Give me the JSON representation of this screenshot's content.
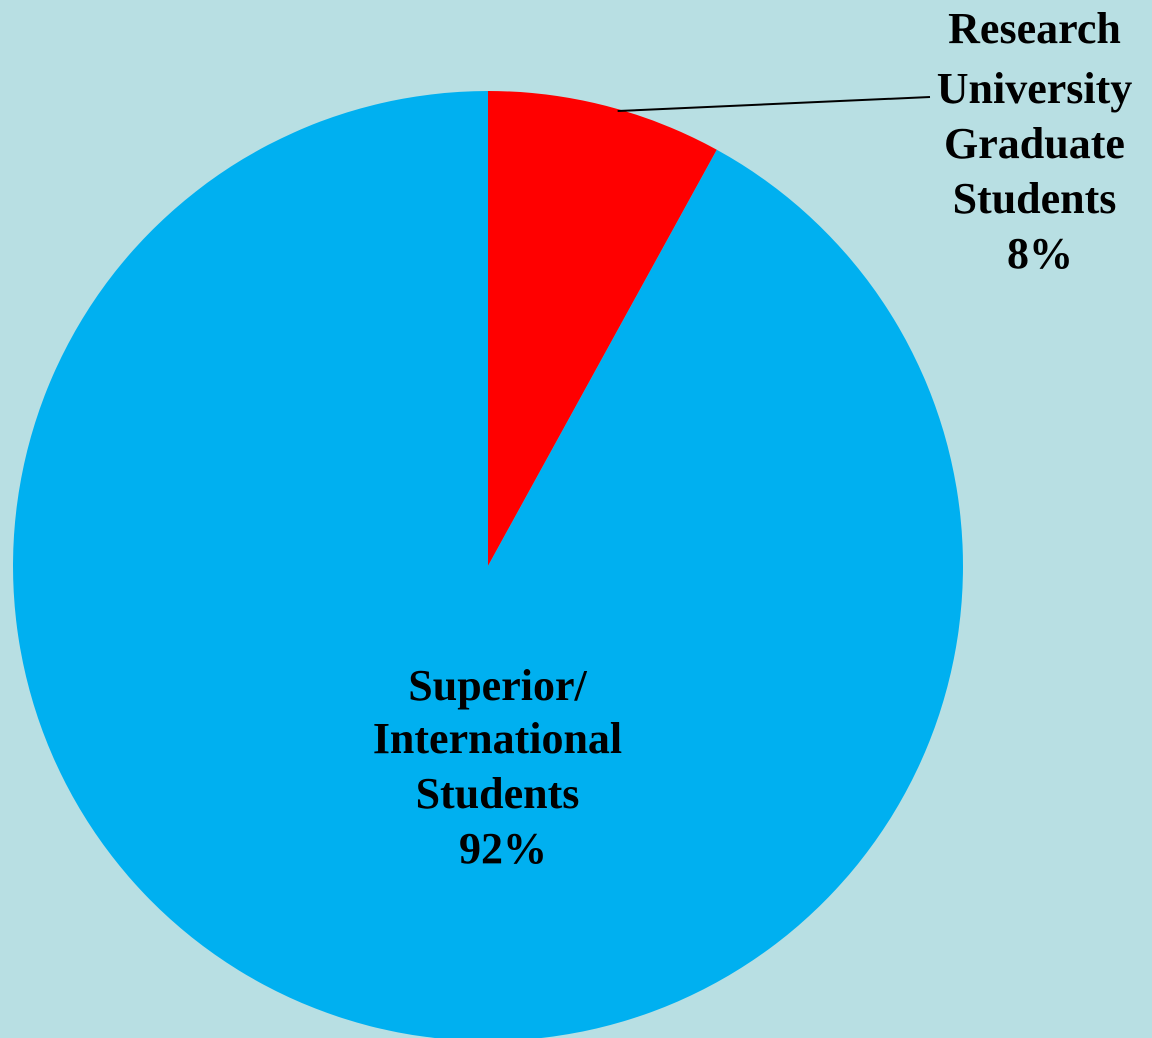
{
  "chart_data": {
    "type": "pie",
    "title": "",
    "start_angle": "top (12 o'clock), clockwise",
    "slices": [
      {
        "label_lines": [
          "Research",
          "University",
          "Graduate",
          "Students"
        ],
        "percent_label": "8%",
        "value": 8,
        "color": "#ff0000",
        "label_position": "outside-top-right with leader line"
      },
      {
        "label_lines": [
          "Superior/",
          "International",
          "Students"
        ],
        "percent_label": "92%",
        "value": 92,
        "color": "#00b0f0",
        "label_position": "inside"
      }
    ]
  },
  "colors": {
    "background": "#b8dfe3",
    "leader_line": "#000000"
  }
}
